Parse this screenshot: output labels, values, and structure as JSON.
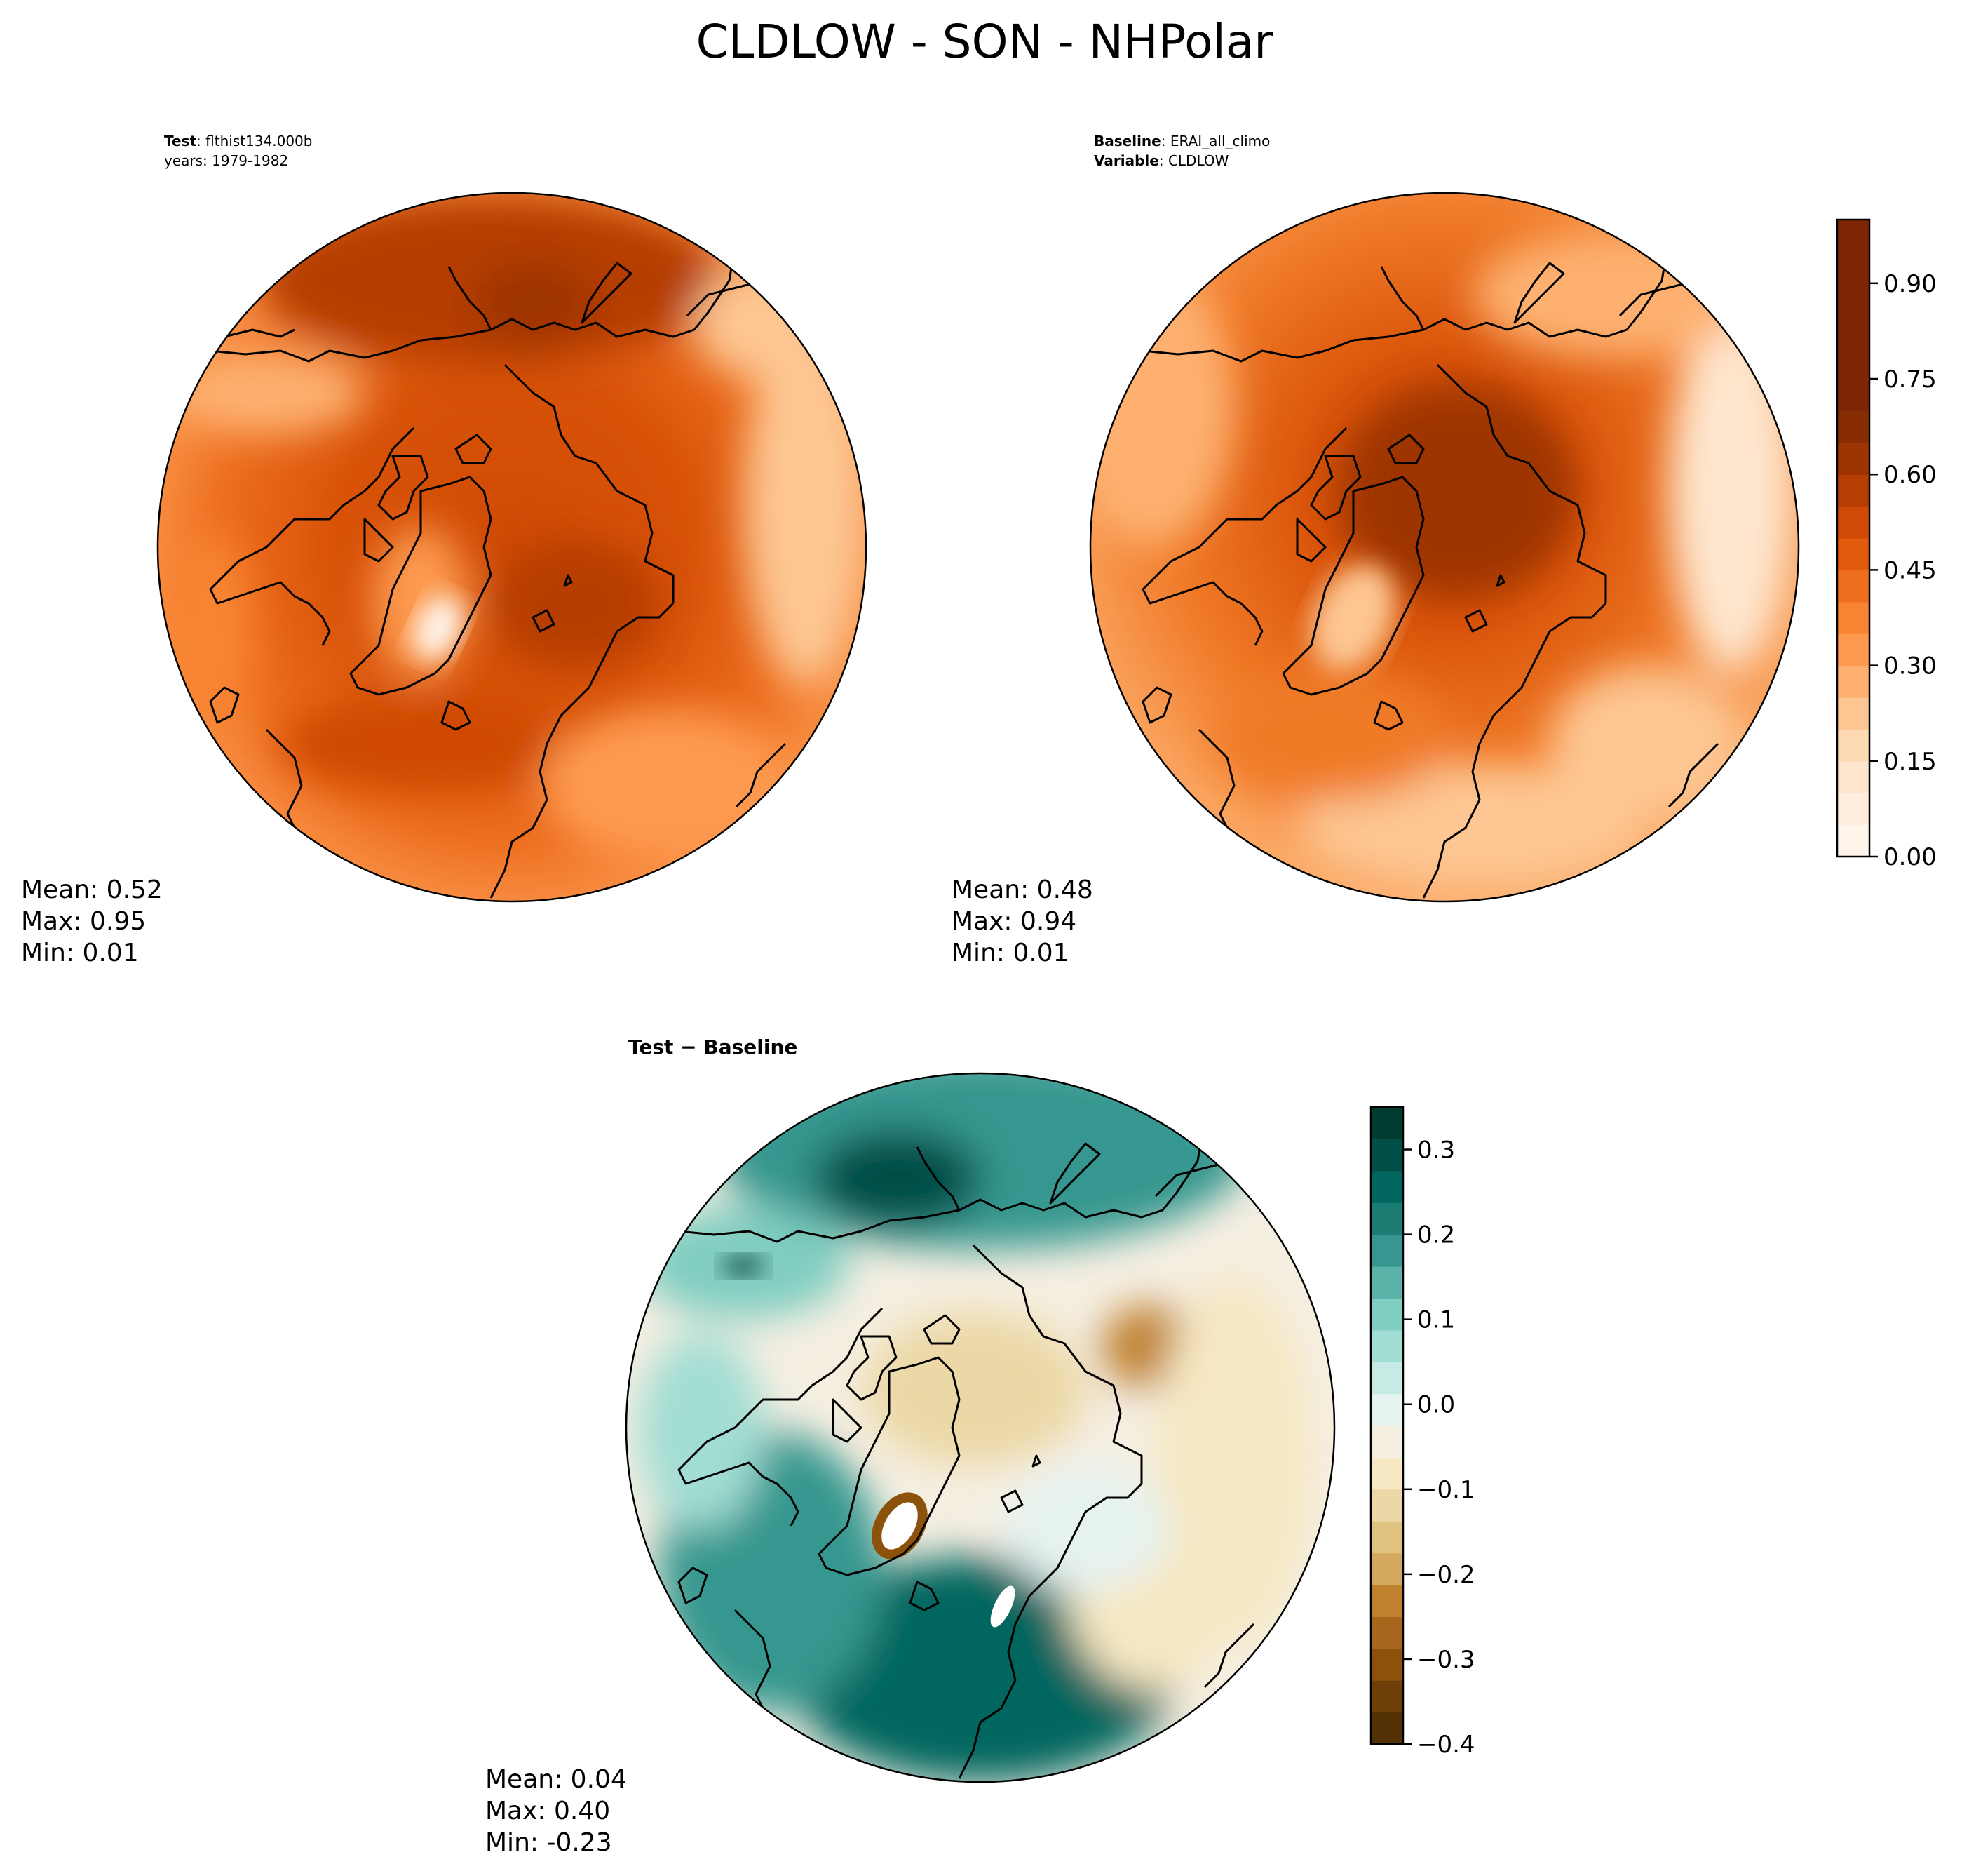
{
  "title": "CLDLOW - SON - NHPolar",
  "chart_data": [
    {
      "type": "heatmap",
      "projection": "North Polar Stereographic",
      "label_bold": "Test",
      "label_value": "flthist134.000b",
      "label_line2": "years: 1979-1982",
      "stats": {
        "mean_label": "Mean:  0.52",
        "max_label": "Max:  0.95",
        "min_label": "Min:  0.01"
      },
      "colormap": "Oranges"
    },
    {
      "type": "heatmap",
      "projection": "North Polar Stereographic",
      "label_bold": "Baseline",
      "label_value": "ERAI_all_climo",
      "label_bold2": "Variable",
      "label_value2": "CLDLOW",
      "stats": {
        "mean_label": "Mean:  0.48",
        "max_label": "Max:  0.94",
        "min_label": "Min:  0.01"
      },
      "colormap": "Oranges",
      "colorbar": {
        "range": [
          0.0,
          1.0
        ],
        "levels": 20,
        "ticks": [
          0.0,
          0.15,
          0.3,
          0.45,
          0.6,
          0.75,
          0.9
        ],
        "tick_labels": [
          "0.00",
          "0.15",
          "0.30",
          "0.45",
          "0.60",
          "0.75",
          "0.90"
        ],
        "colors": [
          "#fff5eb",
          "#ffeedd",
          "#fee6ce",
          "#fdd9b4",
          "#fdc692",
          "#fdb06f",
          "#fd9a4f",
          "#f88433",
          "#ed6e1f",
          "#e25a0e",
          "#cf4a04",
          "#b63e03",
          "#9e3403",
          "#882c03",
          "#7f2704",
          "#7f2704",
          "#7f2704",
          "#7f2704",
          "#7f2704",
          "#7f2704"
        ]
      }
    },
    {
      "type": "heatmap",
      "projection": "North Polar Stereographic",
      "label_bold": "Test − Baseline",
      "stats": {
        "mean_label": "Mean:  0.04",
        "max_label": "Max:  0.40",
        "min_label": "Min: -0.23"
      },
      "colormap": "BrBG",
      "colorbar": {
        "range": [
          -0.4,
          0.35
        ],
        "step": 0.05,
        "ticks": [
          -0.4,
          -0.3,
          -0.2,
          -0.1,
          0.0,
          0.1,
          0.2,
          0.3
        ],
        "tick_labels": [
          "−0.4",
          "−0.3",
          "−0.2",
          "−0.1",
          "0.0",
          "0.1",
          "0.2",
          "0.3"
        ],
        "colors": [
          "#543005",
          "#6e3f09",
          "#8c510a",
          "#a6661c",
          "#bf812d",
          "#d3a960",
          "#dfc27d",
          "#ecd8a6",
          "#f6e8c3",
          "#f5efe2",
          "#e6f3f1",
          "#c7eae5",
          "#a2ddd3",
          "#80cdc1",
          "#5ab2a8",
          "#35978f",
          "#1c7d74",
          "#01665e",
          "#004e46",
          "#003c30"
        ]
      }
    }
  ]
}
